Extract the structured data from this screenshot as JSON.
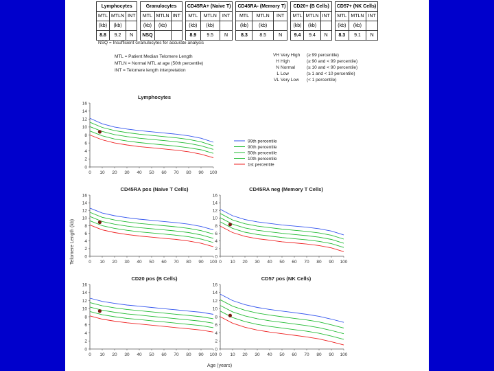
{
  "table": {
    "groups": [
      {
        "name": "Lymphocytes",
        "mtl": "8.8",
        "mtln": "9.2",
        "int": "N"
      },
      {
        "name": "Granulocytes",
        "mtl": "NSQ",
        "mtln": "",
        "int": ""
      },
      {
        "name": "CD45RA+ (Naive T)",
        "mtl": "8.9",
        "mtln": "9.5",
        "int": "N"
      },
      {
        "name": "CD45RA- (Memory T)",
        "mtl": "8.3",
        "mtln": "8.5",
        "int": "N"
      },
      {
        "name": "CD20+ (B Cells)",
        "mtl": "9.4",
        "mtln": "9.4",
        "int": "N"
      },
      {
        "name": "CD57+ (NK Cells)",
        "mtl": "8.3",
        "mtln": "9.1",
        "int": "N"
      }
    ],
    "col_headers": [
      "MTL",
      "MTLN",
      "INT"
    ],
    "unit": "(kb)"
  },
  "notes": {
    "nsq": "NSQ = Insufficient Granulocytes for accurate analysis",
    "mtl": "MTL = Patient Median Telomere Length",
    "mtln": "MTLN = Normal MTL at age (50th percentile)",
    "int": "INT = Telomere length interpretation"
  },
  "interpretation_legend": [
    {
      "code": "VH",
      "label": "Very High",
      "range": "(≥ 99 percentile)"
    },
    {
      "code": "H",
      "label": "High",
      "range": "(≥ 90 and < 99 percentile)"
    },
    {
      "code": "N",
      "label": "Normal",
      "range": "(≥ 10 and < 90 percentile)"
    },
    {
      "code": "L",
      "label": "Low",
      "range": "(≥ 1 and < 10 percentile)"
    },
    {
      "code": "VL",
      "label": "Very Low",
      "range": "(< 1 percentile)"
    }
  ],
  "shared_axis": {
    "ylabel": "Telomere Length (kb)",
    "xlabel": "Age (years)"
  },
  "legend_items": [
    {
      "label": "99th percentile",
      "color": "#3355ee"
    },
    {
      "label": "90th percentile",
      "color": "#22bb33"
    },
    {
      "label": "50th percentile",
      "color": "#22bb33"
    },
    {
      "label": "10th percentile",
      "color": "#22bb33"
    },
    {
      "label": "1st percentile",
      "color": "#ee2222"
    }
  ],
  "chart_data": [
    {
      "type": "line",
      "title": "Lymphocytes",
      "xlim": [
        0,
        100
      ],
      "ylim": [
        0,
        16
      ],
      "xticks": [
        0,
        10,
        20,
        30,
        40,
        50,
        60,
        70,
        80,
        90,
        100
      ],
      "yticks": [
        0,
        2,
        4,
        6,
        8,
        10,
        12,
        14,
        16
      ],
      "x": [
        0,
        10,
        20,
        30,
        40,
        50,
        60,
        70,
        80,
        90,
        100
      ],
      "series": [
        {
          "name": "99th percentile",
          "color": "#3355ee",
          "values": [
            12.2,
            10.8,
            10.0,
            9.5,
            9.1,
            8.8,
            8.5,
            8.2,
            7.8,
            7.2,
            6.2
          ]
        },
        {
          "name": "90th percentile",
          "color": "#22bb33",
          "values": [
            11.2,
            9.9,
            9.1,
            8.6,
            8.2,
            7.9,
            7.6,
            7.3,
            6.9,
            6.3,
            5.3
          ]
        },
        {
          "name": "50th percentile",
          "color": "#22bb33",
          "values": [
            10.1,
            8.9,
            8.1,
            7.6,
            7.2,
            6.9,
            6.6,
            6.3,
            5.9,
            5.3,
            4.4
          ]
        },
        {
          "name": "10th percentile",
          "color": "#22bb33",
          "values": [
            9.0,
            7.8,
            7.0,
            6.5,
            6.1,
            5.8,
            5.5,
            5.2,
            4.8,
            4.3,
            3.4
          ]
        },
        {
          "name": "1st percentile",
          "color": "#ee2222",
          "values": [
            8.0,
            6.8,
            6.0,
            5.5,
            5.1,
            4.8,
            4.5,
            4.2,
            3.8,
            3.2,
            2.3
          ]
        }
      ],
      "patient": {
        "age": 8,
        "value": 8.8
      }
    },
    {
      "type": "line",
      "title": "CD45RA pos (Naive T Cells)",
      "xlim": [
        0,
        100
      ],
      "ylim": [
        0,
        16
      ],
      "xticks": [
        0,
        10,
        20,
        30,
        40,
        50,
        60,
        70,
        80,
        90,
        100
      ],
      "yticks": [
        0,
        2,
        4,
        6,
        8,
        10,
        12,
        14,
        16
      ],
      "x": [
        0,
        10,
        20,
        30,
        40,
        50,
        60,
        70,
        80,
        90,
        100
      ],
      "series": [
        {
          "name": "99th percentile",
          "color": "#3355ee",
          "values": [
            12.6,
            11.3,
            10.6,
            10.1,
            9.7,
            9.4,
            9.1,
            8.8,
            8.4,
            7.8,
            6.9
          ]
        },
        {
          "name": "90th percentile",
          "color": "#22bb33",
          "values": [
            11.5,
            10.2,
            9.5,
            9.0,
            8.6,
            8.3,
            8.0,
            7.7,
            7.3,
            6.7,
            5.8
          ]
        },
        {
          "name": "50th percentile",
          "color": "#22bb33",
          "values": [
            10.4,
            9.1,
            8.4,
            7.9,
            7.5,
            7.2,
            6.9,
            6.6,
            6.2,
            5.6,
            4.7
          ]
        },
        {
          "name": "10th percentile",
          "color": "#22bb33",
          "values": [
            9.3,
            8.0,
            7.3,
            6.8,
            6.4,
            6.1,
            5.8,
            5.5,
            5.1,
            4.5,
            3.6
          ]
        },
        {
          "name": "1st percentile",
          "color": "#ee2222",
          "values": [
            8.2,
            6.9,
            6.2,
            5.7,
            5.3,
            5.0,
            4.7,
            4.4,
            4.0,
            3.4,
            2.5
          ]
        }
      ],
      "patient": {
        "age": 8,
        "value": 8.9
      }
    },
    {
      "type": "line",
      "title": "CD45RA neg (Memory T Cells)",
      "xlim": [
        0,
        100
      ],
      "ylim": [
        0,
        16
      ],
      "xticks": [
        0,
        10,
        20,
        30,
        40,
        50,
        60,
        70,
        80,
        90,
        100
      ],
      "yticks": [
        0,
        2,
        4,
        6,
        8,
        10,
        12,
        14,
        16
      ],
      "x": [
        0,
        10,
        20,
        30,
        40,
        50,
        60,
        70,
        80,
        90,
        100
      ],
      "series": [
        {
          "name": "99th percentile",
          "color": "#3355ee",
          "values": [
            12.3,
            10.6,
            9.6,
            9.0,
            8.6,
            8.2,
            7.9,
            7.6,
            7.2,
            6.6,
            5.6
          ]
        },
        {
          "name": "90th percentile",
          "color": "#22bb33",
          "values": [
            11.2,
            9.5,
            8.5,
            7.9,
            7.5,
            7.1,
            6.8,
            6.5,
            6.1,
            5.5,
            4.5
          ]
        },
        {
          "name": "50th percentile",
          "color": "#22bb33",
          "values": [
            10.1,
            8.4,
            7.4,
            6.8,
            6.4,
            6.0,
            5.7,
            5.4,
            5.0,
            4.4,
            3.4
          ]
        },
        {
          "name": "10th percentile",
          "color": "#22bb33",
          "values": [
            9.0,
            7.3,
            6.3,
            5.7,
            5.3,
            4.9,
            4.6,
            4.3,
            3.9,
            3.3,
            2.3
          ]
        },
        {
          "name": "1st percentile",
          "color": "#ee2222",
          "values": [
            7.9,
            6.2,
            5.2,
            4.6,
            4.2,
            3.8,
            3.5,
            3.2,
            2.8,
            2.2,
            1.2
          ]
        }
      ],
      "patient": {
        "age": 8,
        "value": 8.3
      }
    },
    {
      "type": "line",
      "title": "CD20 pos (B Cells)",
      "xlim": [
        0,
        100
      ],
      "ylim": [
        0,
        16
      ],
      "xticks": [
        0,
        10,
        20,
        30,
        40,
        50,
        60,
        70,
        80,
        90,
        100
      ],
      "yticks": [
        0,
        2,
        4,
        6,
        8,
        10,
        12,
        14,
        16
      ],
      "x": [
        0,
        10,
        20,
        30,
        40,
        50,
        60,
        70,
        80,
        90,
        100
      ],
      "series": [
        {
          "name": "99th percentile",
          "color": "#3355ee",
          "values": [
            12.6,
            11.8,
            11.3,
            10.9,
            10.6,
            10.3,
            10.0,
            9.7,
            9.4,
            9.1,
            8.6
          ]
        },
        {
          "name": "90th percentile",
          "color": "#22bb33",
          "values": [
            11.5,
            10.7,
            10.2,
            9.8,
            9.5,
            9.2,
            8.9,
            8.6,
            8.3,
            8.0,
            7.5
          ]
        },
        {
          "name": "50th percentile",
          "color": "#22bb33",
          "values": [
            10.4,
            9.6,
            9.1,
            8.7,
            8.4,
            8.1,
            7.8,
            7.5,
            7.2,
            6.9,
            6.4
          ]
        },
        {
          "name": "10th percentile",
          "color": "#22bb33",
          "values": [
            9.3,
            8.5,
            8.0,
            7.6,
            7.3,
            7.0,
            6.7,
            6.4,
            6.1,
            5.8,
            5.3
          ]
        },
        {
          "name": "1st percentile",
          "color": "#ee2222",
          "values": [
            8.2,
            7.4,
            6.9,
            6.5,
            6.2,
            5.9,
            5.6,
            5.3,
            5.0,
            4.7,
            4.2
          ]
        }
      ],
      "patient": {
        "age": 8,
        "value": 9.4
      }
    },
    {
      "type": "line",
      "title": "CD57 pos (NK Cells)",
      "xlim": [
        0,
        100
      ],
      "ylim": [
        0,
        16
      ],
      "xticks": [
        0,
        10,
        20,
        30,
        40,
        50,
        60,
        70,
        80,
        90,
        100
      ],
      "yticks": [
        0,
        2,
        4,
        6,
        8,
        10,
        12,
        14,
        16
      ],
      "x": [
        0,
        10,
        20,
        30,
        40,
        50,
        60,
        70,
        80,
        90,
        100
      ],
      "series": [
        {
          "name": "99th percentile",
          "color": "#3355ee",
          "values": [
            13.6,
            12.0,
            11.0,
            10.3,
            9.8,
            9.4,
            9.0,
            8.6,
            8.1,
            7.4,
            6.6
          ]
        },
        {
          "name": "90th percentile",
          "color": "#22bb33",
          "values": [
            12.2,
            10.6,
            9.6,
            8.9,
            8.4,
            8.0,
            7.6,
            7.2,
            6.7,
            6.0,
            5.2
          ]
        },
        {
          "name": "50th percentile",
          "color": "#22bb33",
          "values": [
            10.8,
            9.2,
            8.2,
            7.5,
            7.0,
            6.6,
            6.2,
            5.8,
            5.3,
            4.6,
            3.8
          ]
        },
        {
          "name": "10th percentile",
          "color": "#22bb33",
          "values": [
            9.4,
            7.8,
            6.8,
            6.1,
            5.6,
            5.2,
            4.8,
            4.4,
            3.9,
            3.2,
            2.4
          ]
        },
        {
          "name": "1st percentile",
          "color": "#ee2222",
          "values": [
            8.0,
            6.4,
            5.4,
            4.7,
            4.2,
            3.8,
            3.4,
            3.0,
            2.5,
            1.8,
            1.0
          ]
        }
      ],
      "patient": {
        "age": 8,
        "value": 8.3
      }
    }
  ]
}
